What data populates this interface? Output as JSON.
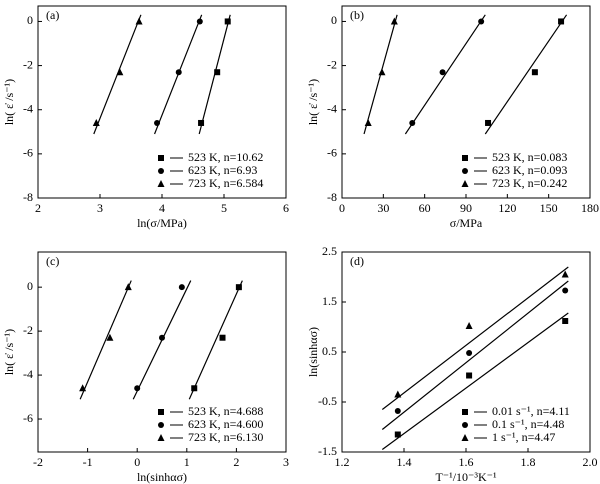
{
  "chart_data": [
    {
      "type": "scatter",
      "label": "(a)",
      "x_label": "ln(σ/MPa)",
      "y_label": "ln( ε̇ /s⁻¹)",
      "xlim": [
        2,
        6
      ],
      "ylim": [
        -8,
        0.7
      ],
      "xticks": [
        2,
        3,
        4,
        5,
        6
      ],
      "yticks": [
        0,
        -2,
        -4,
        -6,
        -8
      ],
      "legend": "lower right",
      "series": [
        {
          "name": "523 K, n=10.62",
          "marker": "square",
          "color": "#000000",
          "x": [
            5.06,
            4.89,
            4.63
          ],
          "values": [
            0,
            -2.3,
            -4.6
          ],
          "fit": {
            "x": [
              4.6,
              5.1
            ],
            "y": [
              -5.1,
              0.3
            ]
          }
        },
        {
          "name": "623 K, n=6.93",
          "marker": "circle",
          "color": "#000000",
          "x": [
            4.61,
            4.27,
            3.92
          ],
          "values": [
            0,
            -2.3,
            -4.6
          ],
          "fit": {
            "x": [
              3.88,
              4.64
            ],
            "y": [
              -5.1,
              0.3
            ]
          }
        },
        {
          "name": "723 K, n=6.584",
          "marker": "triangle",
          "color": "#000000",
          "x": [
            3.63,
            3.32,
            2.94
          ],
          "values": [
            0,
            -2.3,
            -4.6
          ],
          "fit": {
            "x": [
              2.9,
              3.66
            ],
            "y": [
              -5.1,
              0.3
            ]
          }
        }
      ]
    },
    {
      "type": "scatter",
      "label": "(b)",
      "x_label": "σ/MPa",
      "y_label": "ln( ε̇ /s⁻¹)",
      "xlim": [
        0,
        180
      ],
      "ylim": [
        -8,
        0.7
      ],
      "xticks": [
        0,
        30,
        60,
        90,
        120,
        150,
        180
      ],
      "yticks": [
        0,
        -2,
        -4,
        -6,
        -8
      ],
      "legend": "lower right",
      "series": [
        {
          "name": "523 K, n=0.083",
          "marker": "square",
          "color": "#000000",
          "x": [
            159,
            140,
            106
          ],
          "values": [
            0,
            -2.3,
            -4.6
          ],
          "fit": {
            "x": [
              104,
              163
            ],
            "y": [
              -5.1,
              0.3
            ]
          }
        },
        {
          "name": "623 K, n=0.093",
          "marker": "circle",
          "color": "#000000",
          "x": [
            101,
            73,
            51
          ],
          "values": [
            0,
            -2.3,
            -4.6
          ],
          "fit": {
            "x": [
              46,
              104
            ],
            "y": [
              -5.1,
              0.3
            ]
          }
        },
        {
          "name": "723 K, n=0.242",
          "marker": "triangle",
          "color": "#000000",
          "x": [
            38,
            29,
            19
          ],
          "values": [
            0,
            -2.3,
            -4.6
          ],
          "fit": {
            "x": [
              16,
              40
            ],
            "y": [
              -5.1,
              0.3
            ]
          }
        }
      ]
    },
    {
      "type": "scatter",
      "label": "(c)",
      "x_label": "ln(sinhασ)",
      "y_label": "ln( ε̇ /s⁻¹)",
      "xlim": [
        -2,
        3
      ],
      "ylim": [
        -7.5,
        1.6
      ],
      "xticks": [
        -2,
        -1,
        0,
        1,
        2,
        3
      ],
      "yticks": [
        0,
        -2,
        -4,
        -6
      ],
      "legend": "lower right",
      "series": [
        {
          "name": "523 K, n=4.688",
          "marker": "square",
          "color": "#000000",
          "x": [
            2.05,
            1.72,
            1.15
          ],
          "values": [
            0,
            -2.3,
            -4.6
          ],
          "fit": {
            "x": [
              1.05,
              2.12
            ],
            "y": [
              -5.1,
              0.3
            ]
          }
        },
        {
          "name": "623 K, n=4.600",
          "marker": "circle",
          "color": "#000000",
          "x": [
            0.9,
            0.5,
            0.0
          ],
          "values": [
            0,
            -2.3,
            -4.6
          ],
          "fit": {
            "x": [
              -0.08,
              1.08
            ],
            "y": [
              -5.1,
              0.3
            ]
          }
        },
        {
          "name": "723 K, n=6.130",
          "marker": "triangle",
          "color": "#000000",
          "x": [
            -0.18,
            -0.55,
            -1.1
          ],
          "values": [
            0,
            -2.3,
            -4.6
          ],
          "fit": {
            "x": [
              -1.15,
              -0.12
            ],
            "y": [
              -5.1,
              0.3
            ]
          }
        }
      ]
    },
    {
      "type": "scatter",
      "label": "(d)",
      "x_label": "T⁻¹/10⁻³K⁻¹",
      "y_label": "ln(sinhασ)",
      "xlim": [
        1.2,
        2.0
      ],
      "ylim": [
        -1.5,
        2.5
      ],
      "xticks": [
        1.2,
        1.4,
        1.6,
        1.8,
        {
          "value": 2,
          "label": "2.0"
        }
      ],
      "yticks": [
        -1.5,
        -0.5,
        0.5,
        1.5,
        2.5
      ],
      "legend": "lower right",
      "series": [
        {
          "name": "0.01 s⁻¹, n=4.11",
          "marker": "square",
          "color": "#000000",
          "x": [
            1.38,
            1.61,
            1.92
          ],
          "values": [
            -1.15,
            0.03,
            1.12
          ],
          "fit": {
            "x": [
              1.33,
              1.93
            ],
            "y": [
              -1.45,
              1.28
            ]
          }
        },
        {
          "name": "0.1 s⁻¹, n=4.48",
          "marker": "circle",
          "color": "#000000",
          "x": [
            1.38,
            1.61,
            1.92
          ],
          "values": [
            -0.68,
            0.48,
            1.73
          ],
          "fit": {
            "x": [
              1.33,
              1.93
            ],
            "y": [
              -1.05,
              1.92
            ]
          }
        },
        {
          "name": "1 s⁻¹, n=4.47",
          "marker": "triangle",
          "color": "#000000",
          "x": [
            1.38,
            1.61,
            1.92
          ],
          "values": [
            -0.35,
            1.02,
            2.05
          ],
          "fit": {
            "x": [
              1.33,
              1.93
            ],
            "y": [
              -0.65,
              2.2
            ]
          }
        }
      ]
    }
  ]
}
